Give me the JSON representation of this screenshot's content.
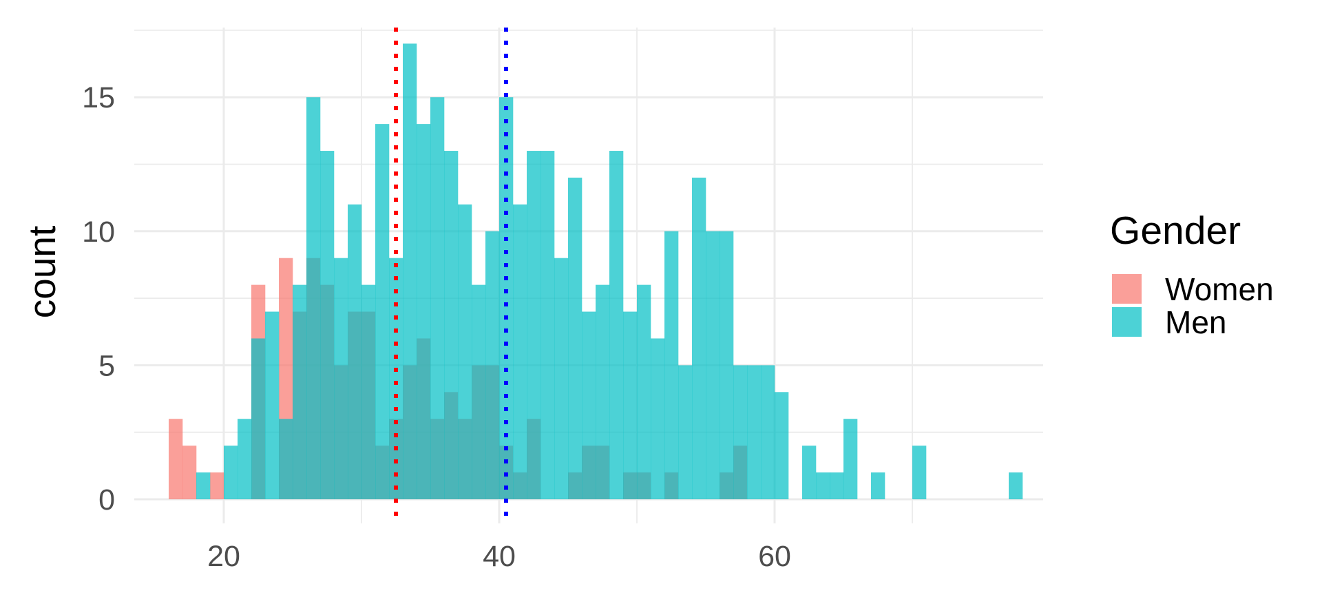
{
  "chart_data": {
    "type": "bar",
    "subtype": "overlapping-histogram",
    "ylabel": "count",
    "xlabel": "",
    "x_ticks": [
      20,
      40,
      60
    ],
    "y_ticks": [
      0,
      5,
      10,
      15
    ],
    "xlim": [
      13.5,
      79.5
    ],
    "ylim": [
      -0.9,
      17.6
    ],
    "grid": true,
    "bin_width": 1,
    "legend": {
      "title": "Gender",
      "position": "right",
      "entries": [
        {
          "label": "Women",
          "color": "#F8766D"
        },
        {
          "label": "Men",
          "color": "#00BFC4"
        }
      ]
    },
    "series": [
      {
        "name": "Women",
        "color": "#F8766D",
        "bins": [
          [
            16.5,
            3
          ],
          [
            17.5,
            2
          ],
          [
            19.5,
            1
          ],
          [
            22.5,
            8
          ],
          [
            24.5,
            9
          ],
          [
            25.5,
            7
          ],
          [
            26.5,
            9
          ],
          [
            27.5,
            8
          ],
          [
            28.5,
            5
          ],
          [
            29.5,
            7
          ],
          [
            30.5,
            7
          ],
          [
            31.5,
            2
          ],
          [
            32.5,
            3
          ],
          [
            33.5,
            5
          ],
          [
            34.5,
            6
          ],
          [
            35.5,
            3
          ],
          [
            36.5,
            4
          ],
          [
            37.5,
            3
          ],
          [
            38.5,
            5
          ],
          [
            39.5,
            5
          ],
          [
            40.5,
            2
          ],
          [
            41.5,
            1
          ],
          [
            42.5,
            3
          ],
          [
            45.5,
            1
          ],
          [
            46.5,
            2
          ],
          [
            47.5,
            2
          ],
          [
            49.5,
            1
          ],
          [
            50.5,
            1
          ],
          [
            52.5,
            1
          ],
          [
            56.5,
            1
          ],
          [
            57.5,
            2
          ]
        ]
      },
      {
        "name": "Men",
        "color": "#00BFC4",
        "bins": [
          [
            18.5,
            1
          ],
          [
            20.5,
            2
          ],
          [
            21.5,
            3
          ],
          [
            22.5,
            6
          ],
          [
            23.5,
            7
          ],
          [
            24.5,
            3
          ],
          [
            25.5,
            8
          ],
          [
            26.5,
            15
          ],
          [
            27.5,
            13
          ],
          [
            28.5,
            9
          ],
          [
            29.5,
            11
          ],
          [
            30.5,
            8
          ],
          [
            31.5,
            14
          ],
          [
            32.5,
            9
          ],
          [
            33.5,
            17
          ],
          [
            34.5,
            14
          ],
          [
            35.5,
            15
          ],
          [
            36.5,
            13
          ],
          [
            37.5,
            11
          ],
          [
            38.5,
            8
          ],
          [
            39.5,
            10
          ],
          [
            40.5,
            15
          ],
          [
            41.5,
            11
          ],
          [
            42.5,
            13
          ],
          [
            43.5,
            13
          ],
          [
            44.5,
            9
          ],
          [
            45.5,
            12
          ],
          [
            46.5,
            7
          ],
          [
            47.5,
            8
          ],
          [
            48.5,
            13
          ],
          [
            49.5,
            7
          ],
          [
            50.5,
            8
          ],
          [
            51.5,
            6
          ],
          [
            52.5,
            10
          ],
          [
            53.5,
            5
          ],
          [
            54.5,
            12
          ],
          [
            55.5,
            10
          ],
          [
            56.5,
            10
          ],
          [
            57.5,
            5
          ],
          [
            58.5,
            5
          ],
          [
            59.5,
            5
          ],
          [
            60.5,
            4
          ],
          [
            62.5,
            2
          ],
          [
            63.5,
            1
          ],
          [
            64.5,
            1
          ],
          [
            65.5,
            3
          ],
          [
            67.5,
            1
          ],
          [
            70.5,
            2
          ],
          [
            77.5,
            1
          ]
        ]
      }
    ],
    "reference_lines": [
      {
        "x": 32.5,
        "color": "#FF0000",
        "style": "dotted"
      },
      {
        "x": 40.5,
        "color": "#0000FF",
        "style": "dotted"
      }
    ]
  }
}
